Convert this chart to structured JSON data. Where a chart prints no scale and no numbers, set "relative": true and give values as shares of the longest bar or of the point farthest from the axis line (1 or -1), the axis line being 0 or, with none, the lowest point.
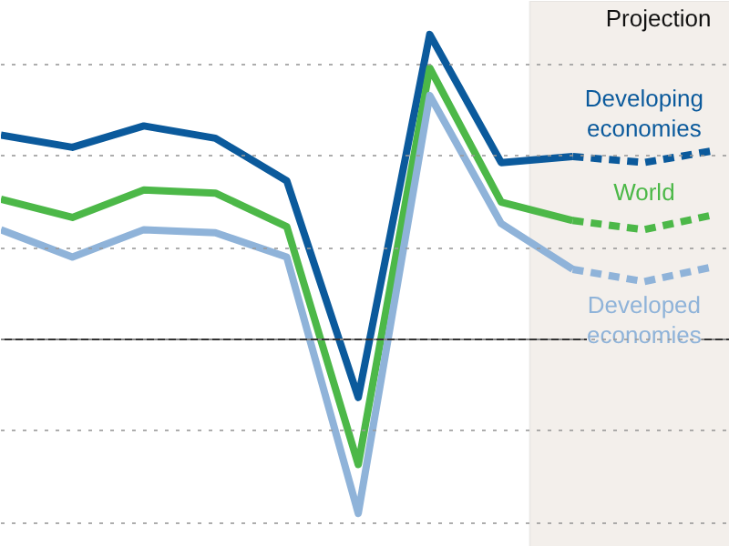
{
  "chart_data": {
    "type": "line",
    "relative": true,
    "categories": [
      null,
      null,
      null,
      null,
      null,
      null,
      null,
      null,
      null,
      null,
      null
    ],
    "series": [
      {
        "name": "Developing economies",
        "color": "#0b5a9c",
        "line_style": "solid",
        "values": [
          0.67,
          0.63,
          0.7,
          0.66,
          0.52,
          -0.19,
          1,
          0.58,
          0.6,
          null,
          null
        ]
      },
      {
        "color": "#0b5a9c",
        "line_style": "dashed",
        "values": [
          null,
          null,
          null,
          null,
          null,
          null,
          null,
          null,
          0.6,
          0.58,
          0.62
        ]
      },
      {
        "name": "World",
        "color": "#4cb848",
        "line_style": "solid",
        "values": [
          0.46,
          0.4,
          0.49,
          0.48,
          0.37,
          -0.41,
          0.89,
          0.45,
          0.39,
          null,
          null
        ]
      },
      {
        "color": "#4cb848",
        "line_style": "dashed",
        "values": [
          null,
          null,
          null,
          null,
          null,
          null,
          null,
          null,
          0.39,
          0.36,
          0.41
        ]
      },
      {
        "name": "Developed economies",
        "color": "#8fb3d9",
        "line_style": "solid",
        "values": [
          0.36,
          0.27,
          0.36,
          0.35,
          0.27,
          -0.57,
          0.8,
          0.38,
          0.23,
          null,
          null
        ]
      },
      {
        "color": "#8fb3d9",
        "line_style": "dashed",
        "values": [
          null,
          null,
          null,
          null,
          null,
          null,
          null,
          null,
          0.23,
          0.19,
          0.24
        ]
      }
    ],
    "annotations": [
      "Projection"
    ],
    "grid": "y",
    "marker": "none"
  }
}
